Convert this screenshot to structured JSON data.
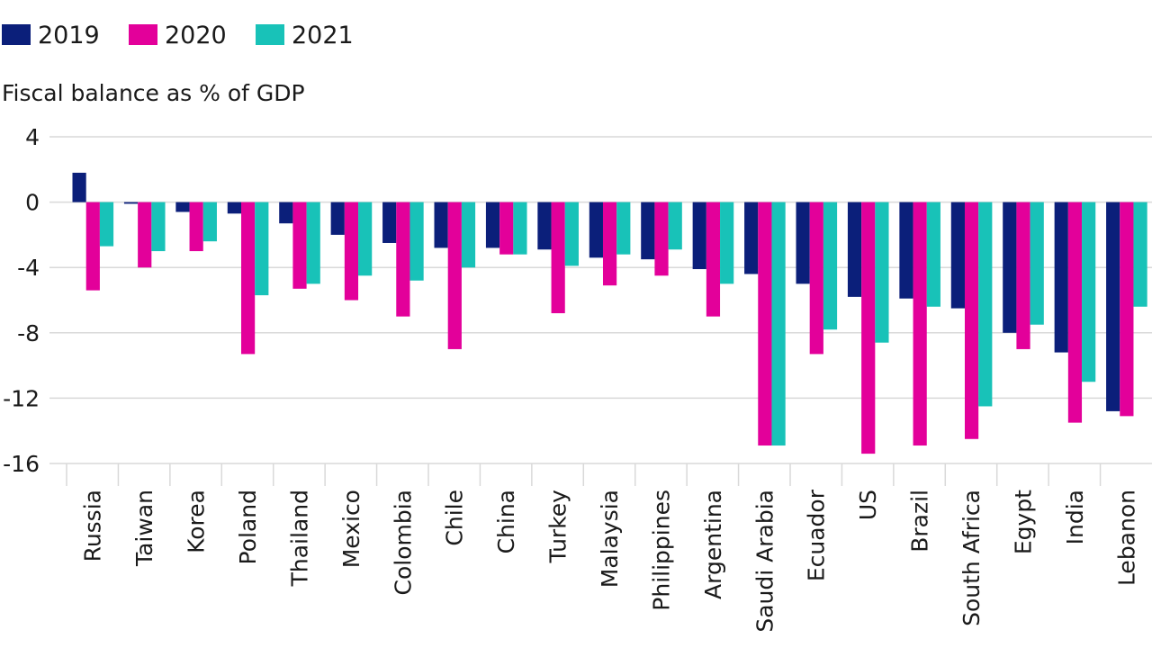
{
  "chart_data": {
    "type": "bar",
    "ylabel": "Fiscal balance as % of GDP",
    "ylim": [
      -16,
      4
    ],
    "yticks": [
      4,
      0,
      -4,
      -8,
      -12,
      -16
    ],
    "grid": true,
    "legend_position": "top-left",
    "categories": [
      "Russia",
      "Taiwan",
      "Korea",
      "Poland",
      "Thailand",
      "Mexico",
      "Colombia",
      "Chile",
      "China",
      "Turkey",
      "Malaysia",
      "Philippines",
      "Argentina",
      "Saudi Arabia",
      "Ecuador",
      "US",
      "Brazil",
      "South Africa",
      "Egypt",
      "India",
      "Lebanon"
    ],
    "series": [
      {
        "name": "2019",
        "color": "#0b1f7a",
        "values": [
          1.8,
          -0.1,
          -0.6,
          -0.7,
          -1.3,
          -2.0,
          -2.5,
          -2.8,
          -2.8,
          -2.9,
          -3.4,
          -3.5,
          -4.1,
          -4.4,
          -5.0,
          -5.8,
          -5.9,
          -6.5,
          -8.0,
          -9.2,
          -12.8
        ]
      },
      {
        "name": "2020",
        "color": "#e3009a",
        "values": [
          -5.4,
          -4.0,
          -3.0,
          -9.3,
          -5.3,
          -6.0,
          -7.0,
          -9.0,
          -3.2,
          -6.8,
          -5.1,
          -4.5,
          -7.0,
          -14.9,
          -9.3,
          -15.4,
          -14.9,
          -14.5,
          -9.0,
          -13.5,
          -13.1
        ]
      },
      {
        "name": "2021",
        "color": "#18c2b8",
        "values": [
          -2.7,
          -3.0,
          -2.4,
          -5.7,
          -5.0,
          -4.5,
          -4.8,
          -4.0,
          -3.2,
          -3.9,
          -3.2,
          -2.9,
          -5.0,
          -14.9,
          -7.8,
          -8.6,
          -6.4,
          -12.5,
          -7.5,
          -11.0,
          -6.4
        ]
      }
    ]
  }
}
